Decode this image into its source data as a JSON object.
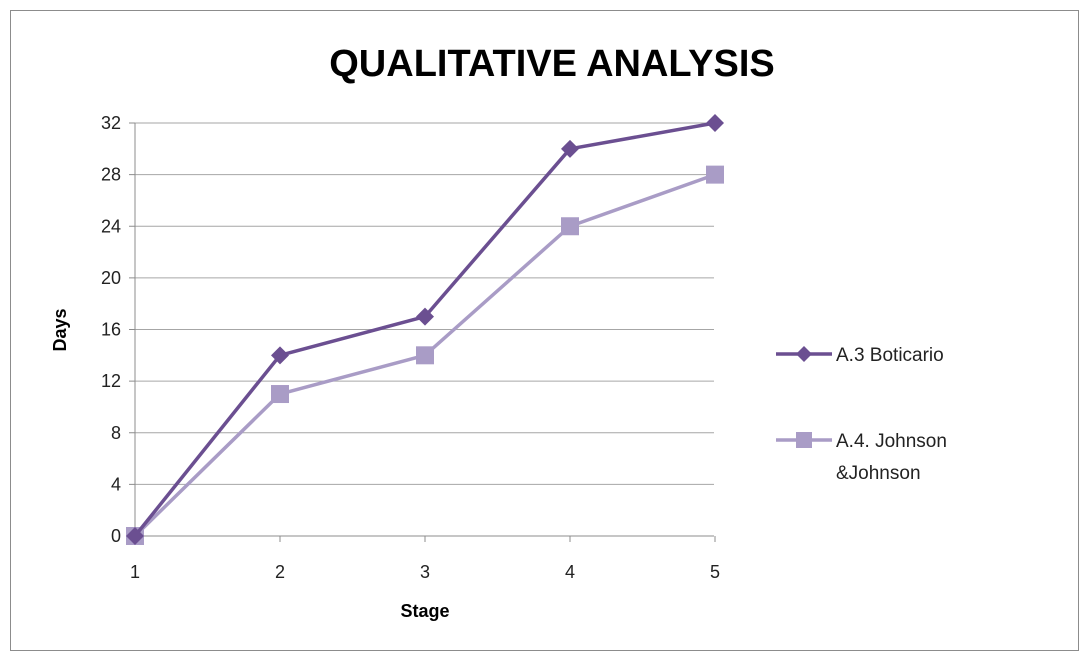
{
  "chart_data": {
    "type": "line",
    "title": "QUALITATIVE ANALYSIS",
    "xlabel": "Stage",
    "ylabel": "Days",
    "x": [
      "1",
      "2",
      "3",
      "4",
      "5"
    ],
    "ylim": [
      0,
      32
    ],
    "yticks": [
      0,
      4,
      8,
      12,
      16,
      20,
      24,
      28,
      32
    ],
    "grid": true,
    "legend_position": "right",
    "series": [
      {
        "name": "A.3 Boticario",
        "values": [
          0,
          14,
          17,
          30,
          32
        ],
        "color": "#6b4f91",
        "marker": "diamond"
      },
      {
        "name_lines": [
          "A.4. Johnson",
          "&Johnson"
        ],
        "values": [
          0,
          11,
          14,
          24,
          28
        ],
        "color": "#a99cc6",
        "marker": "square"
      }
    ]
  }
}
